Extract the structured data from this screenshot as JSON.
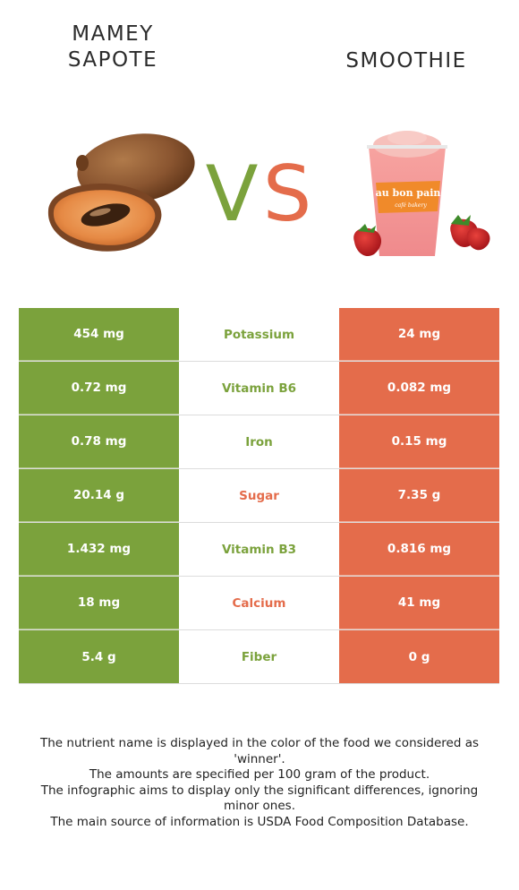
{
  "foods": {
    "left": {
      "name": "MAMEY SAPOTE",
      "line1": "MAMEY",
      "line2": "SAPOTE",
      "color": "#7ba23c"
    },
    "right": {
      "name": "SMOOTHIE",
      "color": "#e46c4b"
    }
  },
  "vs": {
    "v": "V",
    "s": "S"
  },
  "rows": [
    {
      "left": "454 mg",
      "nutrient": "Potassium",
      "right": "24 mg",
      "winner": "left"
    },
    {
      "left": "0.72 mg",
      "nutrient": "Vitamin B6",
      "right": "0.082 mg",
      "winner": "left"
    },
    {
      "left": "0.78 mg",
      "nutrient": "Iron",
      "right": "0.15 mg",
      "winner": "left"
    },
    {
      "left": "20.14 g",
      "nutrient": "Sugar",
      "right": "7.35 g",
      "winner": "right"
    },
    {
      "left": "1.432 mg",
      "nutrient": "Vitamin B3",
      "right": "0.816 mg",
      "winner": "left"
    },
    {
      "left": "18 mg",
      "nutrient": "Calcium",
      "right": "41 mg",
      "winner": "right"
    },
    {
      "left": "5.4 g",
      "nutrient": "Fiber",
      "right": "0 g",
      "winner": "left"
    }
  ],
  "cup_brand": "au bon pain",
  "cup_tagline": "café bakery",
  "footer": [
    "The nutrient name is displayed in the color of the food we considered as 'winner'.",
    "The amounts are specified per 100 gram of the product.",
    "The infographic aims to display only the significant differences, ignoring minor ones.",
    "The main source of information is USDA Food Composition Database."
  ]
}
